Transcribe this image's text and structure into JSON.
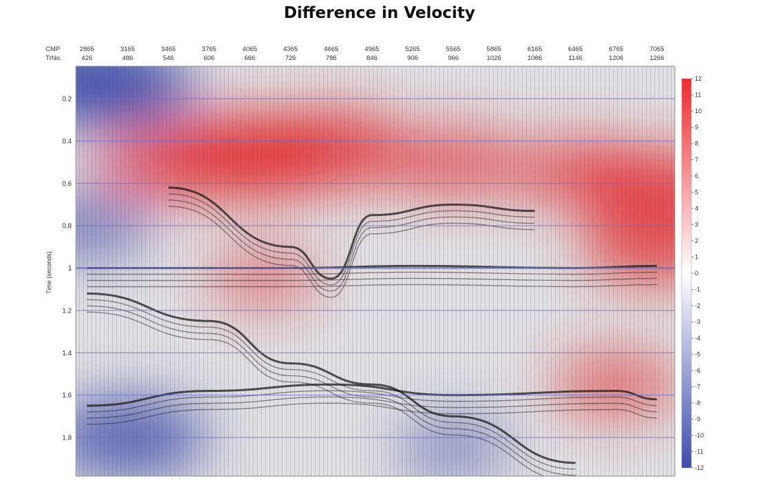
{
  "chart_data": {
    "type": "heatmap",
    "title": "Difference in Velocity",
    "ylabel": "Time (seconds)",
    "header_rows": [
      {
        "label": "CMP",
        "values": [
          "2865",
          "3165",
          "3465",
          "3765",
          "4065",
          "4365",
          "4665",
          "4965",
          "5265",
          "5565",
          "5865",
          "6165",
          "6465",
          "6765",
          "7065"
        ]
      },
      {
        "label": "TrNo.",
        "values": [
          "426",
          "486",
          "546",
          "606",
          "666",
          "726",
          "786",
          "846",
          "906",
          "966",
          "1026",
          "1086",
          "1146",
          "1206",
          "1266"
        ]
      }
    ],
    "y_ticks": [
      "0.2",
      "0.4",
      "0.6",
      "0.8",
      "1",
      "1.2",
      "1.4",
      "1.6",
      "1.8"
    ],
    "ylim": [
      0.06,
      2.0
    ],
    "colorbar": {
      "min": -12,
      "max": 12,
      "ticks": [
        "12",
        "11",
        "10",
        "9",
        "8",
        "7",
        "6",
        "5",
        "4",
        "3",
        "2",
        "1",
        "0",
        "-1",
        "-2",
        "-3",
        "-4",
        "-5",
        "-6",
        "-7",
        "-8",
        "-9",
        "-10",
        "-11",
        "-12"
      ],
      "colors": {
        "negative": "#3b4bb0",
        "zero": "#ffffff",
        "positive": "#ee2b2f"
      }
    },
    "velocity_anomalies": [
      {
        "cmp": 4065,
        "time": 0.47,
        "value": 11
      },
      {
        "cmp": 4665,
        "time": 0.44,
        "value": 9
      },
      {
        "cmp": 3465,
        "time": 0.5,
        "value": 7
      },
      {
        "cmp": 5565,
        "time": 0.5,
        "value": 6
      },
      {
        "cmp": 6465,
        "time": 0.55,
        "value": 6
      },
      {
        "cmp": 7065,
        "time": 0.62,
        "value": 9
      },
      {
        "cmp": 7065,
        "time": 0.9,
        "value": 8
      },
      {
        "cmp": 4165,
        "time": 1.05,
        "value": 3
      },
      {
        "cmp": 6765,
        "time": 1.55,
        "value": 5
      },
      {
        "cmp": 2865,
        "time": 0.12,
        "value": -11
      },
      {
        "cmp": 3165,
        "time": 0.15,
        "value": -7
      },
      {
        "cmp": 3165,
        "time": 1.8,
        "value": -9
      },
      {
        "cmp": 2865,
        "time": 0.8,
        "value": -5
      },
      {
        "cmp": 5565,
        "time": 1.85,
        "value": -3
      }
    ],
    "reflectors": [
      {
        "name": "strong-reflector-1.0s",
        "points": [
          [
            2865,
            1.0
          ],
          [
            4365,
            1.0
          ],
          [
            5265,
            0.99
          ],
          [
            6465,
            1.0
          ],
          [
            7065,
            0.99
          ]
        ]
      },
      {
        "name": "dome-reflector",
        "points": [
          [
            3465,
            0.62
          ],
          [
            4365,
            0.9
          ],
          [
            4665,
            1.05
          ],
          [
            4965,
            0.75
          ],
          [
            5565,
            0.7
          ],
          [
            6165,
            0.73
          ]
        ]
      },
      {
        "name": "dipping-reflector",
        "points": [
          [
            2865,
            1.12
          ],
          [
            3765,
            1.25
          ],
          [
            4365,
            1.45
          ],
          [
            4965,
            1.55
          ],
          [
            5565,
            1.7
          ],
          [
            6465,
            1.92
          ]
        ]
      },
      {
        "name": "deep-reflector",
        "points": [
          [
            2865,
            1.65
          ],
          [
            3765,
            1.58
          ],
          [
            4665,
            1.55
          ],
          [
            5565,
            1.6
          ],
          [
            6765,
            1.58
          ],
          [
            7065,
            1.62
          ]
        ]
      }
    ],
    "grid_lines_at_y_ticks": true
  }
}
